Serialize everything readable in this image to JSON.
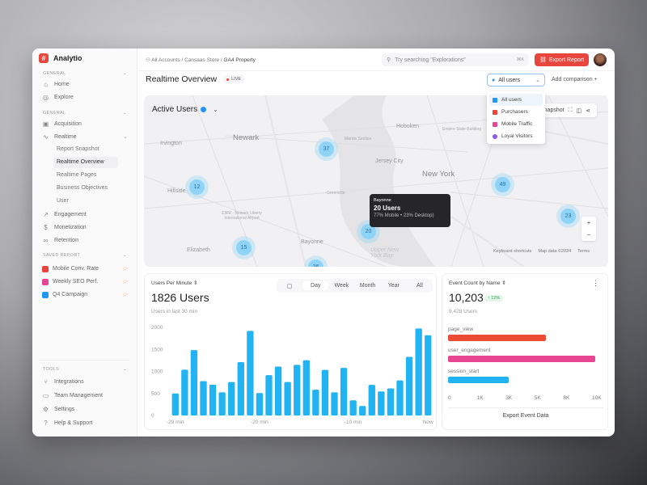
{
  "app": {
    "name": "Analytio"
  },
  "sidebar": {
    "general1": {
      "label": "GENERAL",
      "items": [
        {
          "label": "Home",
          "icon": "home-icon"
        },
        {
          "label": "Explore",
          "icon": "compass-icon"
        }
      ]
    },
    "general2": {
      "label": "GENERAL",
      "items": [
        {
          "label": "Acquisition",
          "icon": "acquisition-icon"
        },
        {
          "label": "Realtime",
          "icon": "pulse-icon"
        }
      ],
      "realtime_sub": [
        "Report Snapshot",
        "Realtime Overview",
        "Realtime Pages",
        "Business Objectives",
        "User"
      ],
      "more": [
        {
          "label": "Engagement",
          "icon": "trend-icon"
        },
        {
          "label": "Monetization",
          "icon": "dollar-icon"
        },
        {
          "label": "Retention",
          "icon": "infinity-icon"
        }
      ]
    },
    "saved": {
      "label": "SAVED REPORT",
      "items": [
        {
          "label": "Mobile Conv. Rate",
          "color": "#e8453c"
        },
        {
          "label": "Weekly SEO Perf.",
          "color": "#e84593"
        },
        {
          "label": "Q4 Campaign",
          "color": "#2196f3"
        }
      ]
    },
    "tools": {
      "label": "TOOLS",
      "items": [
        {
          "label": "Integrations",
          "icon": "branch-icon"
        },
        {
          "label": "Team Management",
          "icon": "briefcase-icon"
        },
        {
          "label": "Settings",
          "icon": "gear-icon"
        },
        {
          "label": "Help & Support",
          "icon": "help-icon"
        }
      ]
    }
  },
  "header": {
    "breadcrumb": [
      "All Accounts",
      "Cansaas Store",
      "GA4 Property"
    ],
    "search_placeholder": "Try searching \"Explorations\"",
    "shortcut": "⌘K",
    "export": "Export Report"
  },
  "page": {
    "title": "Realtime Overview",
    "live": "LIVE",
    "segment": "All users",
    "add_comparison": "Add comparison",
    "segment_options": [
      {
        "label": "All users",
        "color": "#2196f3"
      },
      {
        "label": "Purchasers",
        "color": "#e8453c"
      },
      {
        "label": "Mobile Traffic",
        "color": "#e84593"
      },
      {
        "label": "Loyal Visitors",
        "color": "#8e5be8"
      }
    ]
  },
  "map": {
    "title": "Active Users",
    "snapshot": "Snapshot",
    "places": [
      "Newark",
      "Irvington",
      "Hillside",
      "Elizabeth",
      "Bayonne",
      "Hoboken",
      "Jersey City",
      "New York",
      "Marion Section",
      "Greenville",
      "Empire State Building",
      "EWR - Newark Liberty International Airport",
      "Upper New York Bay"
    ],
    "clusters": [
      37,
      12,
      15,
      20,
      49,
      23,
      26
    ],
    "tooltip": {
      "place": "Bayonne",
      "users": "20 Users",
      "split": "77% Mobile • 23% Desktop)"
    },
    "attribution": [
      "Keyboard shortcuts",
      "Map data ©2024",
      "Terms"
    ]
  },
  "users_per_minute": {
    "label": "Users Per Minute",
    "value": "1826 Users",
    "sub": "Users in last 30 min",
    "tabs": [
      "Day",
      "Week",
      "Month",
      "Year",
      "All"
    ],
    "active_tab": "Day"
  },
  "events": {
    "label": "Event Count by Name",
    "value": "10,203",
    "change": "↑ 12%",
    "sub": "9,428 Users",
    "export": "Export Event Data"
  },
  "chart_data": [
    {
      "type": "bar",
      "yticks": [
        "0",
        "500",
        "1000",
        "1500",
        "2000"
      ],
      "ylim": [
        0,
        2000
      ],
      "xticks": [
        "-29 min",
        "-20 min",
        "-10 min",
        "Now"
      ],
      "values": [
        500,
        1040,
        1485,
        780,
        700,
        525,
        760,
        1210,
        1920,
        510,
        915,
        1110,
        760,
        1150,
        1255,
        585,
        1035,
        525,
        1080,
        345,
        215,
        695,
        545,
        615,
        795,
        1330,
        1975,
        1820
      ],
      "color": "#22b4f2"
    },
    {
      "type": "bar",
      "orientation": "horizontal",
      "categories": [
        "page_view",
        "user_engagement",
        "session_start"
      ],
      "values": [
        5900,
        9900,
        3100
      ],
      "colors": [
        "#ee4b35",
        "#e84593",
        "#22b4f2"
      ],
      "xticks": [
        "0",
        "1K",
        "3K",
        "5K",
        "8K",
        "10K"
      ]
    }
  ]
}
